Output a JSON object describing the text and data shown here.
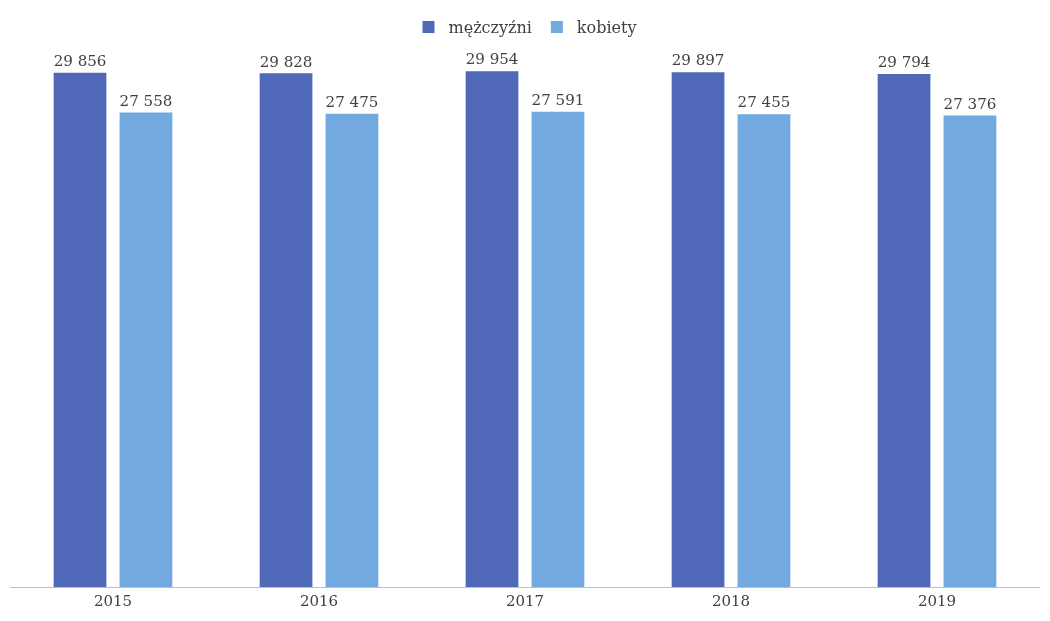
{
  "chart_data": {
    "type": "bar",
    "categories": [
      "2015",
      "2016",
      "2017",
      "2018",
      "2019"
    ],
    "series": [
      {
        "name": "mężczyźni",
        "color": "#5068b8",
        "values": [
          29856,
          29828,
          29954,
          29897,
          29794
        ],
        "value_labels": [
          "29 856",
          "29 828",
          "29 954",
          "29 897",
          "29 794"
        ]
      },
      {
        "name": "kobiety",
        "color": "#72aadf",
        "values": [
          27558,
          27475,
          27591,
          27455,
          27376
        ],
        "value_labels": [
          "27 558",
          "27 475",
          "27 591",
          "27 455",
          "27 376"
        ]
      }
    ],
    "tick_labels": "x",
    "legend": "top"
  }
}
